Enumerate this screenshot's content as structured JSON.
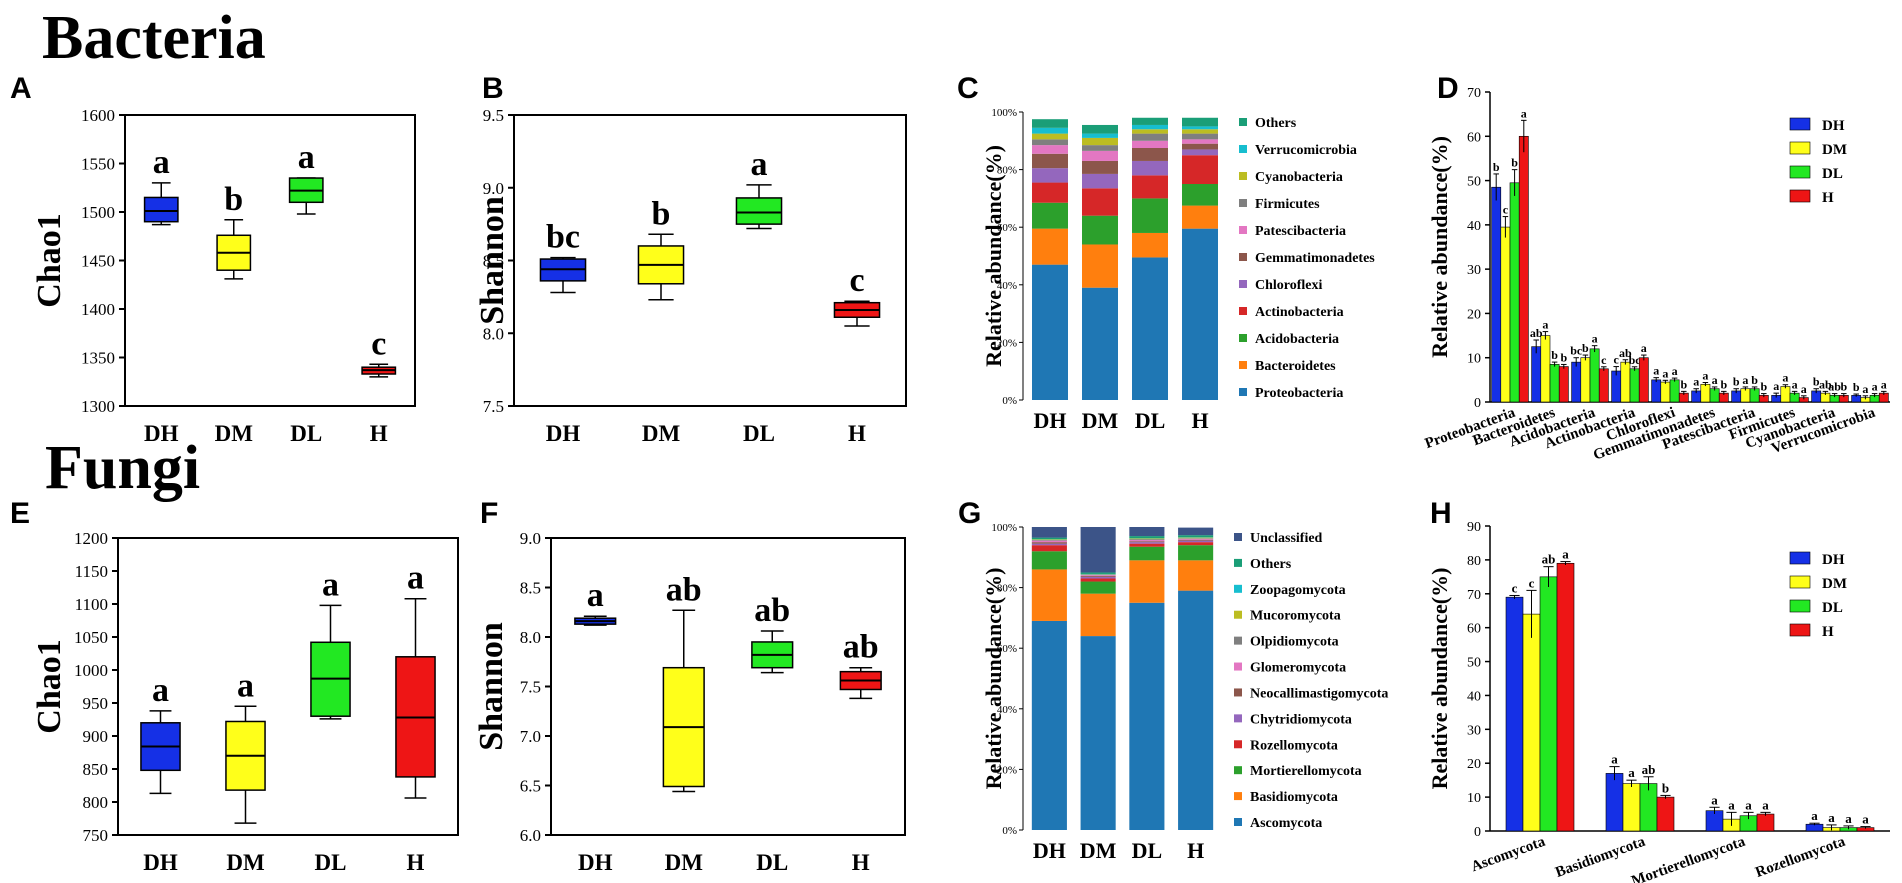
{
  "section_titles": {
    "bacteria": "Bacteria",
    "fungi": "Fungi"
  },
  "colors": {
    "DH": "#1530e6",
    "DM": "#ffff1a",
    "DL": "#22e822",
    "H": "#ee1515"
  },
  "stack_colors": [
    "#1f77b4",
    "#ff7f0e",
    "#2ca02c",
    "#d62728",
    "#9467bd",
    "#8c564b",
    "#e377c2",
    "#7f7f7f",
    "#bcbd22",
    "#17becf",
    "#1a9e77",
    "#3c5488"
  ],
  "chart_data": [
    {
      "id": "A",
      "type": "box",
      "panel_label": "A",
      "ylabel": "Chao1",
      "ylim": [
        1300,
        1600
      ],
      "yticks": [
        1300,
        1350,
        1400,
        1450,
        1500,
        1550,
        1600
      ],
      "categories": [
        "DH",
        "DM",
        "DL",
        "H"
      ],
      "boxes": [
        {
          "min": 1487,
          "q1": 1490,
          "median": 1501,
          "q3": 1515,
          "max": 1530
        },
        {
          "min": 1431,
          "q1": 1440,
          "median": 1458,
          "q3": 1476,
          "max": 1492
        },
        {
          "min": 1498,
          "q1": 1510,
          "median": 1522,
          "q3": 1535,
          "max": 1535
        },
        {
          "min": 1330,
          "q1": 1333,
          "median": 1337,
          "q3": 1340,
          "max": 1343
        }
      ],
      "letters": [
        "a",
        "b",
        "a",
        "c"
      ]
    },
    {
      "id": "B",
      "type": "box",
      "panel_label": "B",
      "ylabel": "Shannon",
      "ylim": [
        7.5,
        9.5
      ],
      "yticks": [
        "7.5",
        "8.0",
        "8.5",
        "9.0",
        "9.5"
      ],
      "categories": [
        "DH",
        "DM",
        "DL",
        "H"
      ],
      "boxes": [
        {
          "min": 8.28,
          "q1": 8.36,
          "median": 8.44,
          "q3": 8.51,
          "max": 8.52
        },
        {
          "min": 8.23,
          "q1": 8.34,
          "median": 8.47,
          "q3": 8.6,
          "max": 8.68
        },
        {
          "min": 8.72,
          "q1": 8.75,
          "median": 8.83,
          "q3": 8.93,
          "max": 9.02
        },
        {
          "min": 8.05,
          "q1": 8.11,
          "median": 8.16,
          "q3": 8.21,
          "max": 8.22
        }
      ],
      "letters": [
        "bc",
        "b",
        "a",
        "c"
      ]
    },
    {
      "id": "C",
      "type": "stacked_bar",
      "panel_label": "C",
      "ylabel": "Relative abundance(%)",
      "yticks": [
        "0%",
        "20%",
        "40%",
        "60%",
        "80%",
        "100%"
      ],
      "categories": [
        "DH",
        "DM",
        "DL",
        "H"
      ],
      "legend": [
        "Others",
        "Verrucomicrobia",
        "Cyanobacteria",
        "Firmicutes",
        "Patescibacteria",
        "Gemmatimonadetes",
        "Chloroflexi",
        "Actinobacteria",
        "Acidobacteria",
        "Bacteroidetes",
        "Proteobacteria"
      ],
      "series": [
        {
          "name": "Proteobacteria",
          "color_index": 0,
          "values": [
            47,
            39,
            49.5,
            59.5
          ]
        },
        {
          "name": "Bacteroidetes",
          "color_index": 1,
          "values": [
            12.5,
            15,
            8.5,
            8
          ]
        },
        {
          "name": "Acidobacteria",
          "color_index": 2,
          "values": [
            9,
            10,
            12,
            7.5
          ]
        },
        {
          "name": "Actinobacteria",
          "color_index": 3,
          "values": [
            7,
            9.5,
            8,
            10
          ]
        },
        {
          "name": "Chloroflexi",
          "color_index": 4,
          "values": [
            5,
            5,
            5,
            2
          ]
        },
        {
          "name": "Gemmatimonadetes",
          "color_index": 5,
          "values": [
            5,
            4.5,
            4.5,
            2
          ]
        },
        {
          "name": "Patescibacteria",
          "color_index": 6,
          "values": [
            3,
            3.5,
            2.5,
            1.5
          ]
        },
        {
          "name": "Firmicutes",
          "color_index": 7,
          "values": [
            2,
            2,
            2.5,
            2
          ]
        },
        {
          "name": "Cyanobacteria",
          "color_index": 8,
          "values": [
            2,
            2.5,
            1.5,
            1.5
          ]
        },
        {
          "name": "Verrucomicrobia",
          "color_index": 9,
          "values": [
            2,
            1.5,
            1.5,
            1
          ]
        },
        {
          "name": "Others",
          "color_index": 10,
          "values": [
            3,
            3,
            2.5,
            3
          ]
        }
      ]
    },
    {
      "id": "D",
      "type": "bar",
      "panel_label": "D",
      "ylabel": "Relative abundance(%)",
      "ylim": [
        0,
        70
      ],
      "yticks": [
        0,
        10,
        20,
        30,
        40,
        50,
        60,
        70
      ],
      "categories": [
        "Proteobacteria",
        "Bacteroidetes",
        "Acidobacteria",
        "Actinobacteria",
        "Chloroflexi",
        "Gemmatimonadetes",
        "Patescibacteria",
        "Firmicutes",
        "Cyanobacteria",
        "Verrucomicrobia"
      ],
      "legend": [
        "DH",
        "DM",
        "DL",
        "H"
      ],
      "series": [
        {
          "name": "DH",
          "values": [
            48.5,
            12.5,
            9,
            7,
            5,
            2.5,
            2.5,
            1.5,
            2.5,
            1.5
          ],
          "errors": [
            3,
            1.5,
            1,
            1,
            0.5,
            0.5,
            0.5,
            0.5,
            0.5,
            0.3
          ]
        },
        {
          "name": "DM",
          "values": [
            39.5,
            15,
            10,
            9,
            4.5,
            4,
            3,
            3.5,
            2,
            1
          ]
        },
        {
          "name": "DL",
          "values": [
            49.5,
            8.5,
            12,
            7.5,
            5,
            3,
            3,
            2,
            1.5,
            1.5
          ]
        },
        {
          "name": "H",
          "values": [
            60,
            8,
            7.5,
            10,
            2,
            2,
            1.5,
            1,
            1.5,
            2
          ]
        }
      ],
      "letters": [
        [
          "b",
          "c",
          "b",
          "a"
        ],
        [
          "ab",
          "a",
          "b",
          "b"
        ],
        [
          "bc",
          "b",
          "a",
          "c"
        ],
        [
          "c",
          "ab",
          "bc",
          "a"
        ],
        [
          "a",
          "a",
          "a",
          "b"
        ],
        [
          "a",
          "a",
          "a",
          "b"
        ],
        [
          "b",
          "a",
          "b",
          "b"
        ],
        [
          "a",
          "a",
          "a",
          "a"
        ],
        [
          "b",
          "ab",
          "ab",
          "b"
        ],
        [
          "b",
          "a",
          "a",
          "a"
        ]
      ]
    },
    {
      "id": "E",
      "type": "box",
      "panel_label": "E",
      "ylabel": "Chao1",
      "ylim": [
        750,
        1200
      ],
      "yticks": [
        750,
        800,
        850,
        900,
        950,
        1000,
        1050,
        1100,
        1150,
        1200
      ],
      "categories": [
        "DH",
        "DM",
        "DL",
        "H"
      ],
      "boxes": [
        {
          "min": 813,
          "q1": 848,
          "median": 884,
          "q3": 920,
          "max": 938
        },
        {
          "min": 768,
          "q1": 818,
          "median": 870,
          "q3": 922,
          "max": 945
        },
        {
          "min": 926,
          "q1": 930,
          "median": 987,
          "q3": 1042,
          "max": 1098
        },
        {
          "min": 806,
          "q1": 838,
          "median": 928,
          "q3": 1020,
          "max": 1108
        }
      ],
      "letters": [
        "a",
        "a",
        "a",
        "a"
      ]
    },
    {
      "id": "F",
      "type": "box",
      "panel_label": "F",
      "ylabel": "Shannon",
      "ylim": [
        6.0,
        9.0
      ],
      "yticks": [
        "6.0",
        "6.5",
        "7.0",
        "7.5",
        "8.0",
        "8.5",
        "9.0"
      ],
      "categories": [
        "DH",
        "DM",
        "DL",
        "H"
      ],
      "boxes": [
        {
          "min": 8.12,
          "q1": 8.13,
          "median": 8.16,
          "q3": 8.19,
          "max": 8.21
        },
        {
          "min": 6.44,
          "q1": 6.49,
          "median": 7.09,
          "q3": 7.69,
          "max": 8.27
        },
        {
          "min": 7.64,
          "q1": 7.69,
          "median": 7.82,
          "q3": 7.95,
          "max": 8.06
        },
        {
          "min": 7.38,
          "q1": 7.47,
          "median": 7.56,
          "q3": 7.65,
          "max": 7.69
        }
      ],
      "letters": [
        "a",
        "ab",
        "ab",
        "ab"
      ]
    },
    {
      "id": "G",
      "type": "stacked_bar",
      "panel_label": "G",
      "ylabel": "Relative abundance(%)",
      "yticks": [
        "0%",
        "20%",
        "40%",
        "60%",
        "80%",
        "100%"
      ],
      "categories": [
        "DH",
        "DM",
        "DL",
        "H"
      ],
      "legend": [
        "Unclassified",
        "Others",
        "Zoopagomycota",
        "Mucoromycota",
        "Olpidiomycota",
        "Glomeromycota",
        "Neocallimastigomycota",
        "Chytridiomycota",
        "Rozellomycota",
        "Mortierellomycota",
        "Basidiomycota",
        "Ascomycota"
      ],
      "series": [
        {
          "name": "Ascomycota",
          "color_index": 0,
          "values": [
            69,
            64,
            75,
            79
          ]
        },
        {
          "name": "Basidiomycota",
          "color_index": 1,
          "values": [
            17,
            14,
            14,
            10
          ]
        },
        {
          "name": "Mortierellomycota",
          "color_index": 2,
          "values": [
            6,
            4,
            4.5,
            5
          ]
        },
        {
          "name": "Rozellomycota",
          "color_index": 3,
          "values": [
            2,
            1,
            1,
            1
          ]
        },
        {
          "name": "Chytridiomycota",
          "color_index": 4,
          "values": [
            0.5,
            0.5,
            0.5,
            0.5
          ]
        },
        {
          "name": "Neocallimastigomycota",
          "color_index": 5,
          "values": [
            0.5,
            0.3,
            0.3,
            0.3
          ]
        },
        {
          "name": "Glomeromycota",
          "color_index": 6,
          "values": [
            0.5,
            0.3,
            0.4,
            0.3
          ]
        },
        {
          "name": "Olpidiomycota",
          "color_index": 7,
          "values": [
            0.2,
            0.2,
            0.3,
            0.2
          ]
        },
        {
          "name": "Mucoromycota",
          "color_index": 8,
          "values": [
            0.2,
            0.1,
            0.2,
            0.2
          ]
        },
        {
          "name": "Zoopagomycota",
          "color_index": 9,
          "values": [
            0.1,
            0.1,
            0.1,
            0.1
          ]
        },
        {
          "name": "Others",
          "color_index": 10,
          "values": [
            0.5,
            0.5,
            0.7,
            0.7
          ]
        },
        {
          "name": "Unclassified",
          "color_index": 11,
          "values": [
            3.5,
            15,
            3,
            2.5
          ]
        }
      ]
    },
    {
      "id": "H",
      "type": "bar",
      "panel_label": "H",
      "ylabel": "Relative abundance(%)",
      "ylim": [
        0,
        90
      ],
      "yticks": [
        0,
        10,
        20,
        30,
        40,
        50,
        60,
        70,
        80,
        90
      ],
      "categories": [
        "Ascomycota",
        "Basidiomycota",
        "Mortierellomycota",
        "Rozellomycota"
      ],
      "legend": [
        "DH",
        "DM",
        "DL",
        "H"
      ],
      "series": [
        {
          "name": "DH",
          "values": [
            69,
            17,
            6,
            2
          ],
          "errors": [
            0.5,
            2,
            1,
            0.3
          ]
        },
        {
          "name": "DM",
          "values": [
            64,
            14,
            3.5,
            1
          ],
          "errors": [
            7,
            1,
            2,
            0.8
          ]
        },
        {
          "name": "DL",
          "values": [
            75,
            14,
            4.5,
            1
          ],
          "errors": [
            3,
            2,
            1,
            0.5
          ]
        },
        {
          "name": "H",
          "values": [
            79,
            10,
            5,
            1
          ],
          "errors": [
            0.5,
            0.5,
            0.5,
            0.3
          ]
        }
      ],
      "letters": [
        [
          "c",
          "c",
          "ab",
          "a"
        ],
        [
          "a",
          "a",
          "ab",
          "b"
        ],
        [
          "a",
          "a",
          "a",
          "a"
        ],
        [
          "a",
          "a",
          "a",
          "a"
        ]
      ]
    }
  ]
}
